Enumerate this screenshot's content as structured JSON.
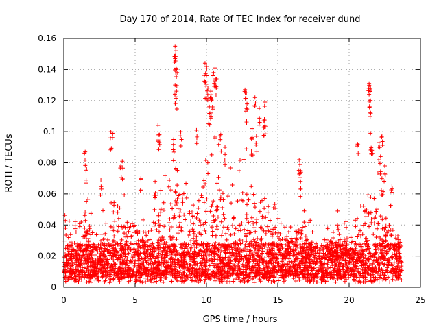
{
  "chart_data": {
    "type": "scatter",
    "title": "Day 170 of 2014, Rate Of TEC Index for receiver dund",
    "xlabel": "GPS time / hours",
    "ylabel": "ROTI / TECUs",
    "xlim": [
      0,
      25
    ],
    "ylim": [
      0,
      0.16
    ],
    "x_ticks": [
      0,
      5,
      10,
      15,
      20,
      25
    ],
    "y_ticks": [
      0,
      0.02,
      0.04,
      0.06,
      0.08,
      0.1,
      0.12,
      0.14,
      0.16
    ],
    "x_tick_labels": [
      "0",
      "5",
      "10",
      "15",
      "20",
      "25"
    ],
    "y_tick_labels": [
      "0",
      "0.02",
      "0.04",
      "0.06",
      "0.08",
      "0.1",
      "0.12",
      "0.14",
      "0.16"
    ],
    "grid": true,
    "marker": "+",
    "color": "#ff0000",
    "data_range_x": [
      0,
      23.7
    ],
    "envelope": {
      "x": [
        0,
        0.5,
        1,
        1.5,
        2,
        2.5,
        3,
        3.5,
        4,
        4.5,
        5,
        5.5,
        6,
        6.5,
        7,
        7.5,
        8,
        8.5,
        9,
        9.5,
        10,
        10.5,
        11,
        11.5,
        12,
        12.5,
        13,
        13.5,
        14,
        14.5,
        15,
        15.5,
        16,
        16.5,
        17,
        17.5,
        18,
        18.5,
        19,
        19.5,
        20,
        20.5,
        21,
        21.5,
        22,
        22.5,
        23,
        23.5
      ],
      "y": [
        0.045,
        0.042,
        0.048,
        0.055,
        0.042,
        0.045,
        0.04,
        0.05,
        0.055,
        0.06,
        0.045,
        0.04,
        0.042,
        0.055,
        0.06,
        0.07,
        0.085,
        0.07,
        0.065,
        0.075,
        0.095,
        0.09,
        0.08,
        0.065,
        0.07,
        0.075,
        0.085,
        0.08,
        0.075,
        0.05,
        0.04,
        0.035,
        0.035,
        0.045,
        0.038,
        0.035,
        0.033,
        0.035,
        0.035,
        0.032,
        0.035,
        0.033,
        0.05,
        0.06,
        0.065,
        0.05,
        0.045,
        0.035
      ]
    },
    "spikes": [
      {
        "x": 1.5,
        "y": 0.087
      },
      {
        "x": 1.6,
        "y": 0.076
      },
      {
        "x": 2.6,
        "y": 0.069
      },
      {
        "x": 3.3,
        "y": 0.1
      },
      {
        "x": 3.4,
        "y": 0.099
      },
      {
        "x": 4.1,
        "y": 0.081
      },
      {
        "x": 4.0,
        "y": 0.078
      },
      {
        "x": 5.4,
        "y": 0.07
      },
      {
        "x": 6.4,
        "y": 0.068
      },
      {
        "x": 6.6,
        "y": 0.104
      },
      {
        "x": 6.7,
        "y": 0.098
      },
      {
        "x": 7.8,
        "y": 0.155
      },
      {
        "x": 7.85,
        "y": 0.152
      },
      {
        "x": 7.8,
        "y": 0.147
      },
      {
        "x": 7.9,
        "y": 0.14
      },
      {
        "x": 7.8,
        "y": 0.13
      },
      {
        "x": 7.9,
        "y": 0.126
      },
      {
        "x": 7.7,
        "y": 0.095
      },
      {
        "x": 8.2,
        "y": 0.1
      },
      {
        "x": 9.3,
        "y": 0.101
      },
      {
        "x": 9.9,
        "y": 0.144
      },
      {
        "x": 10.0,
        "y": 0.142
      },
      {
        "x": 10.0,
        "y": 0.136
      },
      {
        "x": 9.95,
        "y": 0.132
      },
      {
        "x": 10.1,
        "y": 0.128
      },
      {
        "x": 10.3,
        "y": 0.126
      },
      {
        "x": 10.6,
        "y": 0.141
      },
      {
        "x": 10.5,
        "y": 0.138
      },
      {
        "x": 10.7,
        "y": 0.134
      },
      {
        "x": 10.4,
        "y": 0.121
      },
      {
        "x": 10.2,
        "y": 0.116
      },
      {
        "x": 10.3,
        "y": 0.112
      },
      {
        "x": 11.0,
        "y": 0.098
      },
      {
        "x": 11.3,
        "y": 0.09
      },
      {
        "x": 12.7,
        "y": 0.127
      },
      {
        "x": 12.8,
        "y": 0.125
      },
      {
        "x": 12.8,
        "y": 0.115
      },
      {
        "x": 13.4,
        "y": 0.122
      },
      {
        "x": 13.7,
        "y": 0.115
      },
      {
        "x": 14.1,
        "y": 0.119
      },
      {
        "x": 14.0,
        "y": 0.107
      },
      {
        "x": 14.1,
        "y": 0.104
      },
      {
        "x": 13.2,
        "y": 0.102
      },
      {
        "x": 13.5,
        "y": 0.097
      },
      {
        "x": 16.5,
        "y": 0.082
      },
      {
        "x": 16.6,
        "y": 0.075
      },
      {
        "x": 16.6,
        "y": 0.068
      },
      {
        "x": 19.2,
        "y": 0.049
      },
      {
        "x": 20.6,
        "y": 0.092
      },
      {
        "x": 21.4,
        "y": 0.131
      },
      {
        "x": 21.5,
        "y": 0.128
      },
      {
        "x": 21.4,
        "y": 0.124
      },
      {
        "x": 21.5,
        "y": 0.12
      },
      {
        "x": 21.5,
        "y": 0.099
      },
      {
        "x": 21.6,
        "y": 0.088
      },
      {
        "x": 22.1,
        "y": 0.093
      },
      {
        "x": 22.3,
        "y": 0.097
      },
      {
        "x": 22.2,
        "y": 0.084
      },
      {
        "x": 22.5,
        "y": 0.078
      },
      {
        "x": 22.3,
        "y": 0.07
      },
      {
        "x": 23.0,
        "y": 0.065
      }
    ]
  }
}
